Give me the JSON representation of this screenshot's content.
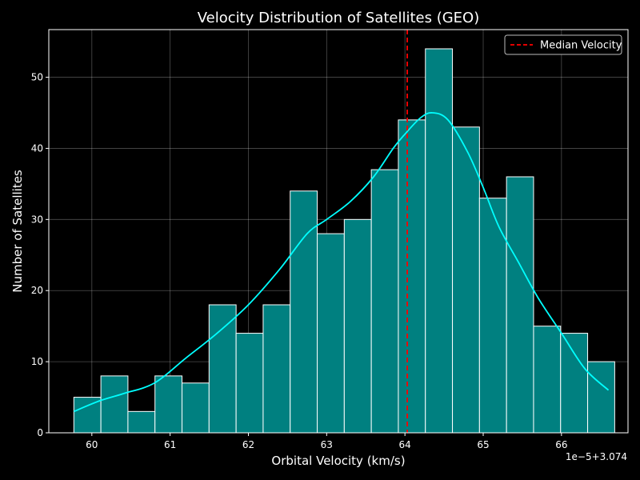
{
  "chart_data": {
    "type": "bar",
    "title": "Velocity Distribution of Satellites (GEO)",
    "xlabel": "Orbital Velocity (km/s)",
    "ylabel": "Number of Satellites",
    "x_offset_label": "1e−5+3.074",
    "xlim": [
      59.45,
      66.85
    ],
    "ylim": [
      0,
      56.7
    ],
    "xticks": [
      60,
      61,
      62,
      63,
      64,
      65,
      66
    ],
    "yticks": [
      0,
      10,
      20,
      30,
      40,
      50
    ],
    "grid": true,
    "legend_position": "top-right",
    "bins": {
      "start": 59.77,
      "width": 0.3455,
      "counts": [
        5,
        8,
        3,
        8,
        7,
        18,
        14,
        18,
        34,
        28,
        30,
        37,
        44,
        54,
        43,
        33,
        36,
        15,
        14,
        10
      ]
    },
    "kde": {
      "x": [
        59.77,
        60.1,
        60.4,
        60.8,
        61.2,
        61.6,
        62.0,
        62.4,
        62.75,
        63.0,
        63.3,
        63.6,
        63.85,
        64.0,
        64.2,
        64.35,
        64.55,
        64.8,
        65.0,
        65.2,
        65.45,
        65.7,
        66.0,
        66.3,
        66.6
      ],
      "y": [
        3,
        4.5,
        5.5,
        7,
        10.5,
        14,
        18,
        23,
        28,
        30,
        32.5,
        36,
        40,
        42,
        44.3,
        45,
        44,
        39.5,
        34.5,
        29,
        24,
        19,
        14,
        9,
        6
      ],
      "color": "#00ffff"
    },
    "median": {
      "value": 64.03,
      "label": "Median Velocity",
      "color": "#ff0000"
    },
    "bar_color": "#008080",
    "bar_edge_color": "#ffffff"
  }
}
